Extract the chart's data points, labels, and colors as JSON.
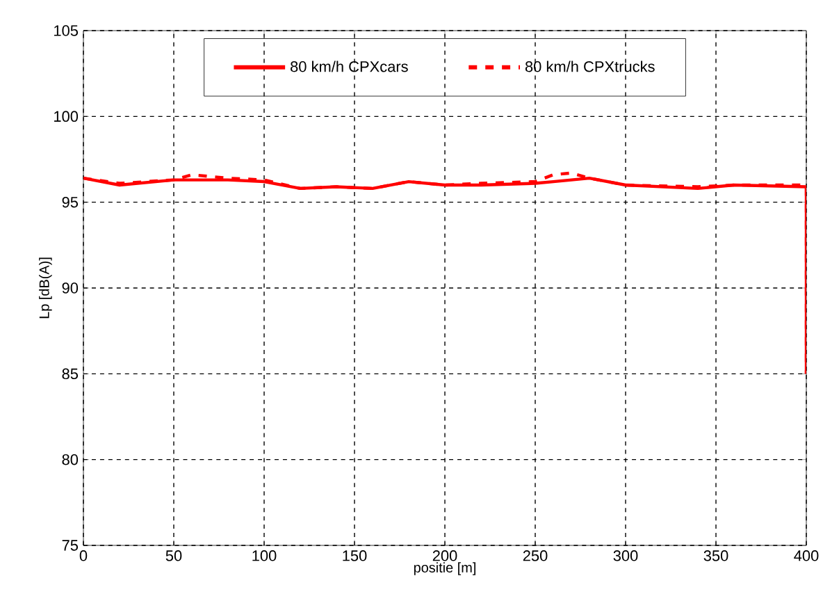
{
  "chart_data": {
    "type": "line",
    "xlabel": "positie [m]",
    "ylabel": "Lp [dB(A)]",
    "x": [
      0,
      20,
      50,
      60,
      80,
      100,
      120,
      140,
      160,
      180,
      200,
      220,
      250,
      260,
      270,
      280,
      300,
      340,
      360,
      400,
      400
    ],
    "series": [
      {
        "name": "80 km/h CPXcars",
        "color": "#ff0000",
        "line_style": "solid",
        "values": [
          96.4,
          96.0,
          96.3,
          96.3,
          96.3,
          96.2,
          95.8,
          95.9,
          95.8,
          96.2,
          96.0,
          96.0,
          96.1,
          96.2,
          96.3,
          96.4,
          96.0,
          95.8,
          96.0,
          95.9,
          85
        ]
      },
      {
        "name": "80 km/h CPXtrucks",
        "color": "#ff0000",
        "line_style": "dashed",
        "values": [
          96.4,
          96.1,
          96.3,
          96.6,
          96.4,
          96.3,
          95.8,
          95.9,
          95.8,
          96.2,
          96.0,
          96.1,
          96.2,
          96.6,
          96.7,
          96.4,
          96.0,
          95.9,
          96.0,
          96.0,
          85
        ]
      }
    ],
    "xlim": [
      0,
      400
    ],
    "ylim": [
      75,
      105
    ],
    "xticks": [
      0,
      50,
      100,
      150,
      200,
      250,
      300,
      350,
      400
    ],
    "yticks": [
      75,
      80,
      85,
      90,
      95,
      100,
      105
    ],
    "grid": true,
    "legend": "top",
    "marker": "none"
  }
}
